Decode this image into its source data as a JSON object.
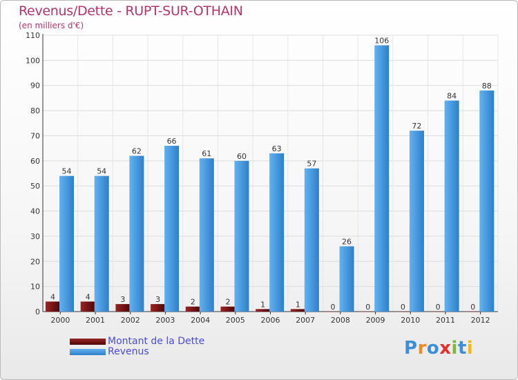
{
  "chart_data": {
    "type": "bar",
    "title": "Revenus/Dette - RUPT-SUR-OTHAIN",
    "subtitle": "(en milliers d'€)",
    "categories": [
      "2000",
      "2001",
      "2002",
      "2003",
      "2004",
      "2005",
      "2006",
      "2007",
      "2008",
      "2009",
      "2010",
      "2011",
      "2012"
    ],
    "series": [
      {
        "name": "Montant de la Dette",
        "color": "#6e0f10",
        "values": [
          4,
          4,
          3,
          3,
          2,
          2,
          1,
          1,
          0,
          0,
          0,
          0,
          0
        ]
      },
      {
        "name": "Revenus",
        "color": "#4a9fe3",
        "values": [
          54,
          54,
          62,
          66,
          61,
          60,
          63,
          57,
          26,
          106,
          72,
          84,
          88
        ]
      }
    ],
    "ylim": [
      0,
      110
    ],
    "yticks": [
      0,
      10,
      20,
      30,
      40,
      50,
      60,
      70,
      80,
      90,
      100,
      110
    ],
    "grid": true,
    "legend": "bottom-left"
  },
  "logo": {
    "text": "Proxiti",
    "colors": [
      "#3a8fd8",
      "#f08a1c",
      "#3a8fd8",
      "#e8302a",
      "#7ab93a",
      "#3a8fd8",
      "#f0b81c"
    ]
  }
}
